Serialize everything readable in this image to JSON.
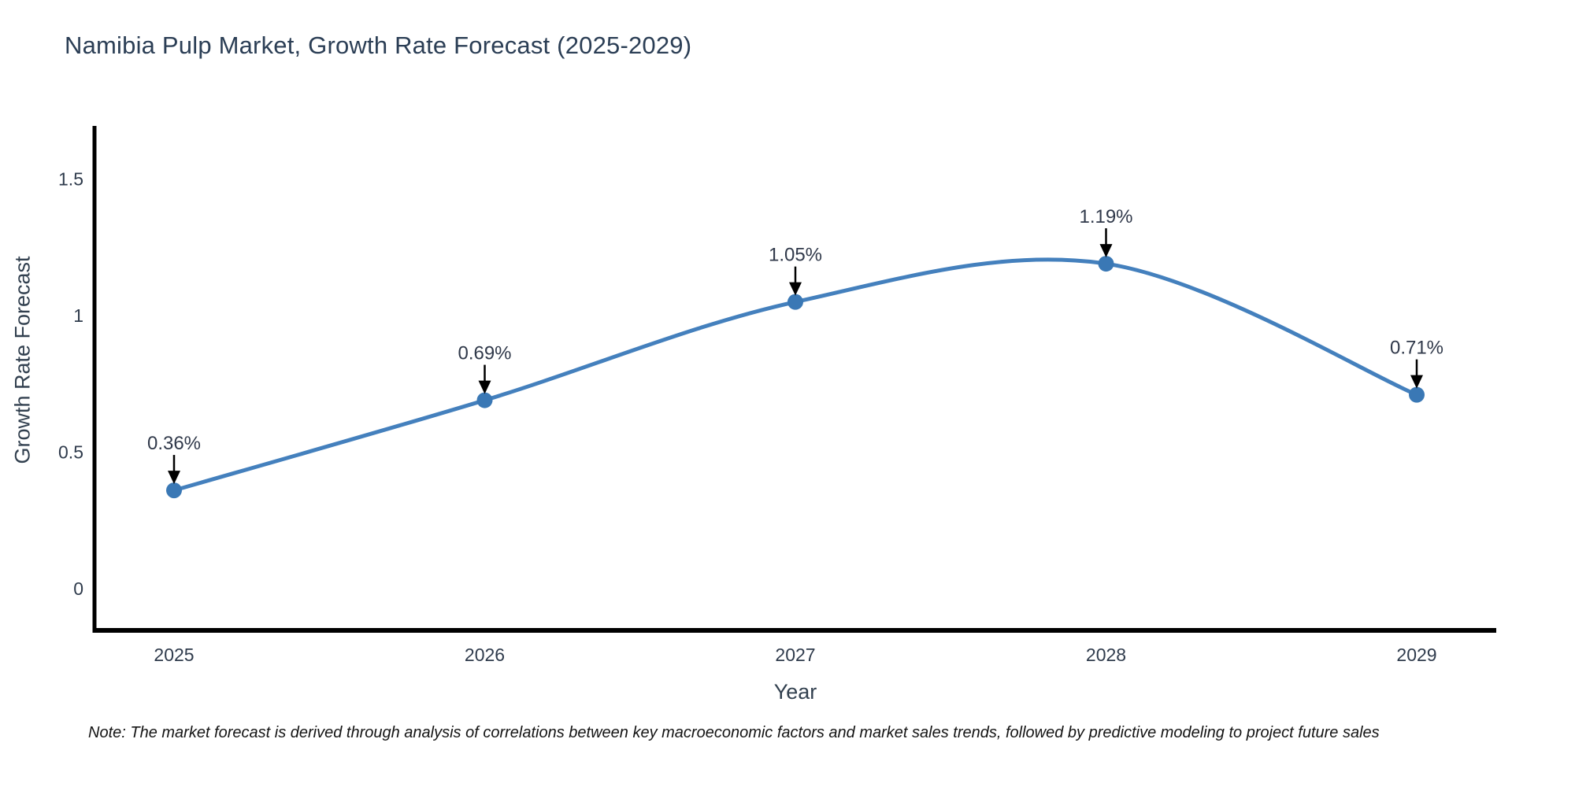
{
  "chart_data": {
    "type": "line",
    "title": "Namibia Pulp Market, Growth Rate Forecast (2025-2029)",
    "xlabel": "Year",
    "ylabel": "Growth Rate Forecast",
    "x": [
      "2025",
      "2026",
      "2027",
      "2028",
      "2029"
    ],
    "series": [
      {
        "name": "Growth Rate Forecast",
        "values": [
          0.36,
          0.69,
          1.05,
          1.19,
          0.71
        ]
      }
    ],
    "point_labels": [
      "0.36%",
      "0.69%",
      "1.05%",
      "1.19%",
      "0.71%"
    ],
    "yticks": [
      0,
      0.5,
      1,
      1.5
    ],
    "ylim": [
      -0.17,
      1.69
    ],
    "grid": false,
    "legend": "none",
    "line_shape": "spline",
    "colors": {
      "line": "#4480bd",
      "marker": "#3a78b5",
      "axis": "#000000",
      "title": "#2b3e55",
      "tick": "#2f3b4c",
      "annotation": "#30394a",
      "arrow": "#000000"
    }
  },
  "note": {
    "text": "Note: The market forecast is derived through analysis of correlations between key macroeconomic factors and market sales trends, followed by predictive modeling to project future sales"
  }
}
